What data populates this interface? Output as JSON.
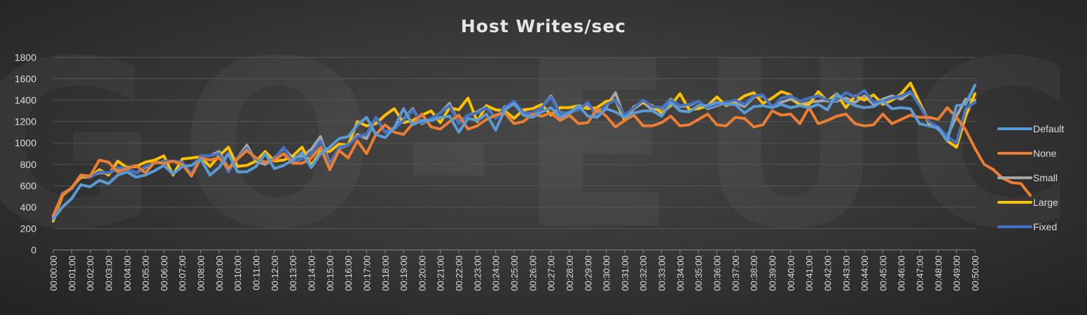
{
  "watermark": "GO-EUC",
  "chart_data": {
    "type": "line",
    "title": "Host Writes/sec",
    "xlabel": "",
    "ylabel": "",
    "ylim": [
      0,
      1800
    ],
    "yticks": [
      0,
      200,
      400,
      600,
      800,
      1000,
      1200,
      1400,
      1600,
      1800
    ],
    "grid": true,
    "legend_position": "right",
    "x_tick_labels": [
      "00:00:00",
      "00:01:00",
      "00:02:00",
      "00:03:00",
      "00:04:00",
      "00:05:00",
      "00:06:00",
      "00:07:00",
      "00:08:00",
      "00:09:00",
      "00:10:00",
      "00:11:00",
      "00:12:00",
      "00:13:00",
      "00:14:00",
      "00:15:00",
      "00:16:00",
      "00:17:00",
      "00:18:00",
      "00:19:00",
      "00:20:00",
      "00:21:00",
      "00:22:00",
      "00:23:00",
      "00:24:00",
      "00:25:00",
      "00:26:00",
      "00:27:00",
      "00:28:00",
      "00:29:00",
      "00:30:00",
      "00:31:00",
      "00:32:00",
      "00:33:00",
      "00:34:00",
      "00:35:00",
      "00:36:00",
      "00:37:00",
      "00:38:00",
      "00:39:00",
      "00:40:00",
      "00:41:00",
      "00:42:00",
      "00:43:00",
      "00:44:00",
      "00:45:00",
      "00:46:00",
      "00:47:00",
      "00:48:00",
      "00:49:00",
      "00:50:00"
    ],
    "points_per_minute": 2,
    "series": [
      {
        "name": "Small",
        "color": "#a5a5a5",
        "values": [
          300,
          520,
          570,
          700,
          690,
          720,
          720,
          760,
          760,
          720,
          770,
          820,
          820,
          830,
          820,
          700,
          880,
          880,
          920,
          760,
          860,
          980,
          830,
          800,
          860,
          950,
          860,
          880,
          940,
          1060,
          800,
          950,
          980,
          1080,
          1040,
          1240,
          1100,
          1140,
          1220,
          1320,
          1180,
          1230,
          1280,
          1370,
          1190,
          1260,
          1290,
          1340,
          1230,
          1340,
          1360,
          1290,
          1270,
          1330,
          1440,
          1280,
          1280,
          1320,
          1350,
          1290,
          1340,
          1470,
          1230,
          1320,
          1380,
          1310,
          1320,
          1410,
          1340,
          1350,
          1390,
          1320,
          1350,
          1380,
          1380,
          1340,
          1430,
          1440,
          1340,
          1380,
          1410,
          1360,
          1380,
          1390,
          1400,
          1390,
          1420,
          1380,
          1440,
          1360,
          1410,
          1440,
          1410,
          1470,
          1380,
          1200,
          1130,
          1060,
          1250,
          1410,
          1400
        ]
      },
      {
        "name": "Large",
        "color": "#ffc000",
        "values": [
          270,
          510,
          580,
          680,
          680,
          750,
          700,
          830,
          770,
          780,
          820,
          840,
          880,
          700,
          850,
          860,
          870,
          780,
          880,
          960,
          780,
          790,
          830,
          920,
          830,
          840,
          880,
          960,
          790,
          920,
          920,
          990,
          980,
          1200,
          1160,
          1180,
          1260,
          1320,
          1190,
          1210,
          1260,
          1300,
          1190,
          1330,
          1310,
          1420,
          1200,
          1350,
          1310,
          1300,
          1230,
          1310,
          1320,
          1360,
          1260,
          1330,
          1330,
          1350,
          1320,
          1330,
          1390,
          1400,
          1210,
          1340,
          1380,
          1350,
          1280,
          1350,
          1460,
          1310,
          1320,
          1350,
          1430,
          1350,
          1380,
          1440,
          1470,
          1370,
          1420,
          1480,
          1450,
          1350,
          1360,
          1480,
          1390,
          1460,
          1330,
          1440,
          1400,
          1450,
          1360,
          1400,
          1460,
          1560,
          1380,
          1180,
          1140,
          1020,
          960,
          1250,
          1460
        ]
      },
      {
        "name": "Fixed",
        "color": "#4472c4",
        "values": [
          290,
          530,
          570,
          700,
          680,
          730,
          720,
          770,
          760,
          720,
          780,
          810,
          830,
          830,
          820,
          710,
          880,
          880,
          900,
          730,
          860,
          950,
          850,
          820,
          850,
          960,
          820,
          850,
          900,
          1020,
          790,
          960,
          980,
          1060,
          1080,
          1240,
          1100,
          1130,
          1210,
          1310,
          1190,
          1230,
          1280,
          1350,
          1180,
          1260,
          1280,
          1330,
          1230,
          1330,
          1390,
          1280,
          1280,
          1330,
          1430,
          1270,
          1290,
          1310,
          1380,
          1240,
          1360,
          1400,
          1260,
          1330,
          1400,
          1340,
          1330,
          1400,
          1350,
          1360,
          1390,
          1330,
          1360,
          1380,
          1400,
          1360,
          1440,
          1450,
          1330,
          1420,
          1440,
          1390,
          1420,
          1440,
          1400,
          1400,
          1470,
          1430,
          1490,
          1380,
          1390,
          1420,
          1440,
          1480,
          1350,
          1200,
          1150,
          1060,
          1000,
          1320,
          1380
        ]
      },
      {
        "name": "None",
        "color": "#ed7d31",
        "values": [
          320,
          520,
          580,
          700,
          690,
          840,
          820,
          730,
          760,
          790,
          720,
          820,
          810,
          830,
          800,
          690,
          860,
          840,
          860,
          760,
          850,
          930,
          860,
          820,
          840,
          900,
          810,
          810,
          860,
          960,
          750,
          930,
          860,
          1020,
          900,
          1080,
          1170,
          1100,
          1080,
          1180,
          1270,
          1150,
          1130,
          1200,
          1260,
          1130,
          1160,
          1220,
          1260,
          1280,
          1180,
          1200,
          1270,
          1250,
          1280,
          1210,
          1260,
          1180,
          1190,
          1320,
          1250,
          1150,
          1210,
          1260,
          1160,
          1160,
          1190,
          1250,
          1160,
          1170,
          1220,
          1270,
          1170,
          1160,
          1240,
          1230,
          1150,
          1170,
          1300,
          1260,
          1270,
          1180,
          1330,
          1180,
          1210,
          1250,
          1270,
          1180,
          1160,
          1170,
          1270,
          1180,
          1220,
          1260,
          1240,
          1240,
          1220,
          1330,
          1240,
          1120,
          950,
          800,
          750,
          670,
          630,
          620,
          510
        ]
      },
      {
        "name": "Default",
        "color": "#5b9bd5",
        "values": [
          290,
          400,
          480,
          610,
          590,
          650,
          620,
          700,
          730,
          680,
          700,
          740,
          790,
          710,
          780,
          790,
          850,
          700,
          770,
          900,
          730,
          730,
          780,
          900,
          760,
          790,
          840,
          910,
          770,
          900,
          960,
          1040,
          1060,
          1170,
          1240,
          1080,
          1050,
          1140,
          1320,
          1170,
          1210,
          1210,
          1240,
          1250,
          1100,
          1230,
          1210,
          1270,
          1120,
          1310,
          1370,
          1260,
          1240,
          1290,
          1330,
          1240,
          1280,
          1350,
          1250,
          1240,
          1320,
          1290,
          1240,
          1280,
          1300,
          1300,
          1250,
          1380,
          1300,
          1290,
          1350,
          1350,
          1380,
          1360,
          1360,
          1280,
          1340,
          1350,
          1330,
          1360,
          1330,
          1350,
          1330,
          1360,
          1310,
          1460,
          1390,
          1350,
          1330,
          1340,
          1390,
          1320,
          1330,
          1320,
          1180,
          1160,
          1140,
          1020,
          1350,
          1360,
          1540
        ]
      }
    ],
    "legend_order": [
      "Default",
      "None",
      "Small",
      "Large",
      "Fixed"
    ]
  }
}
